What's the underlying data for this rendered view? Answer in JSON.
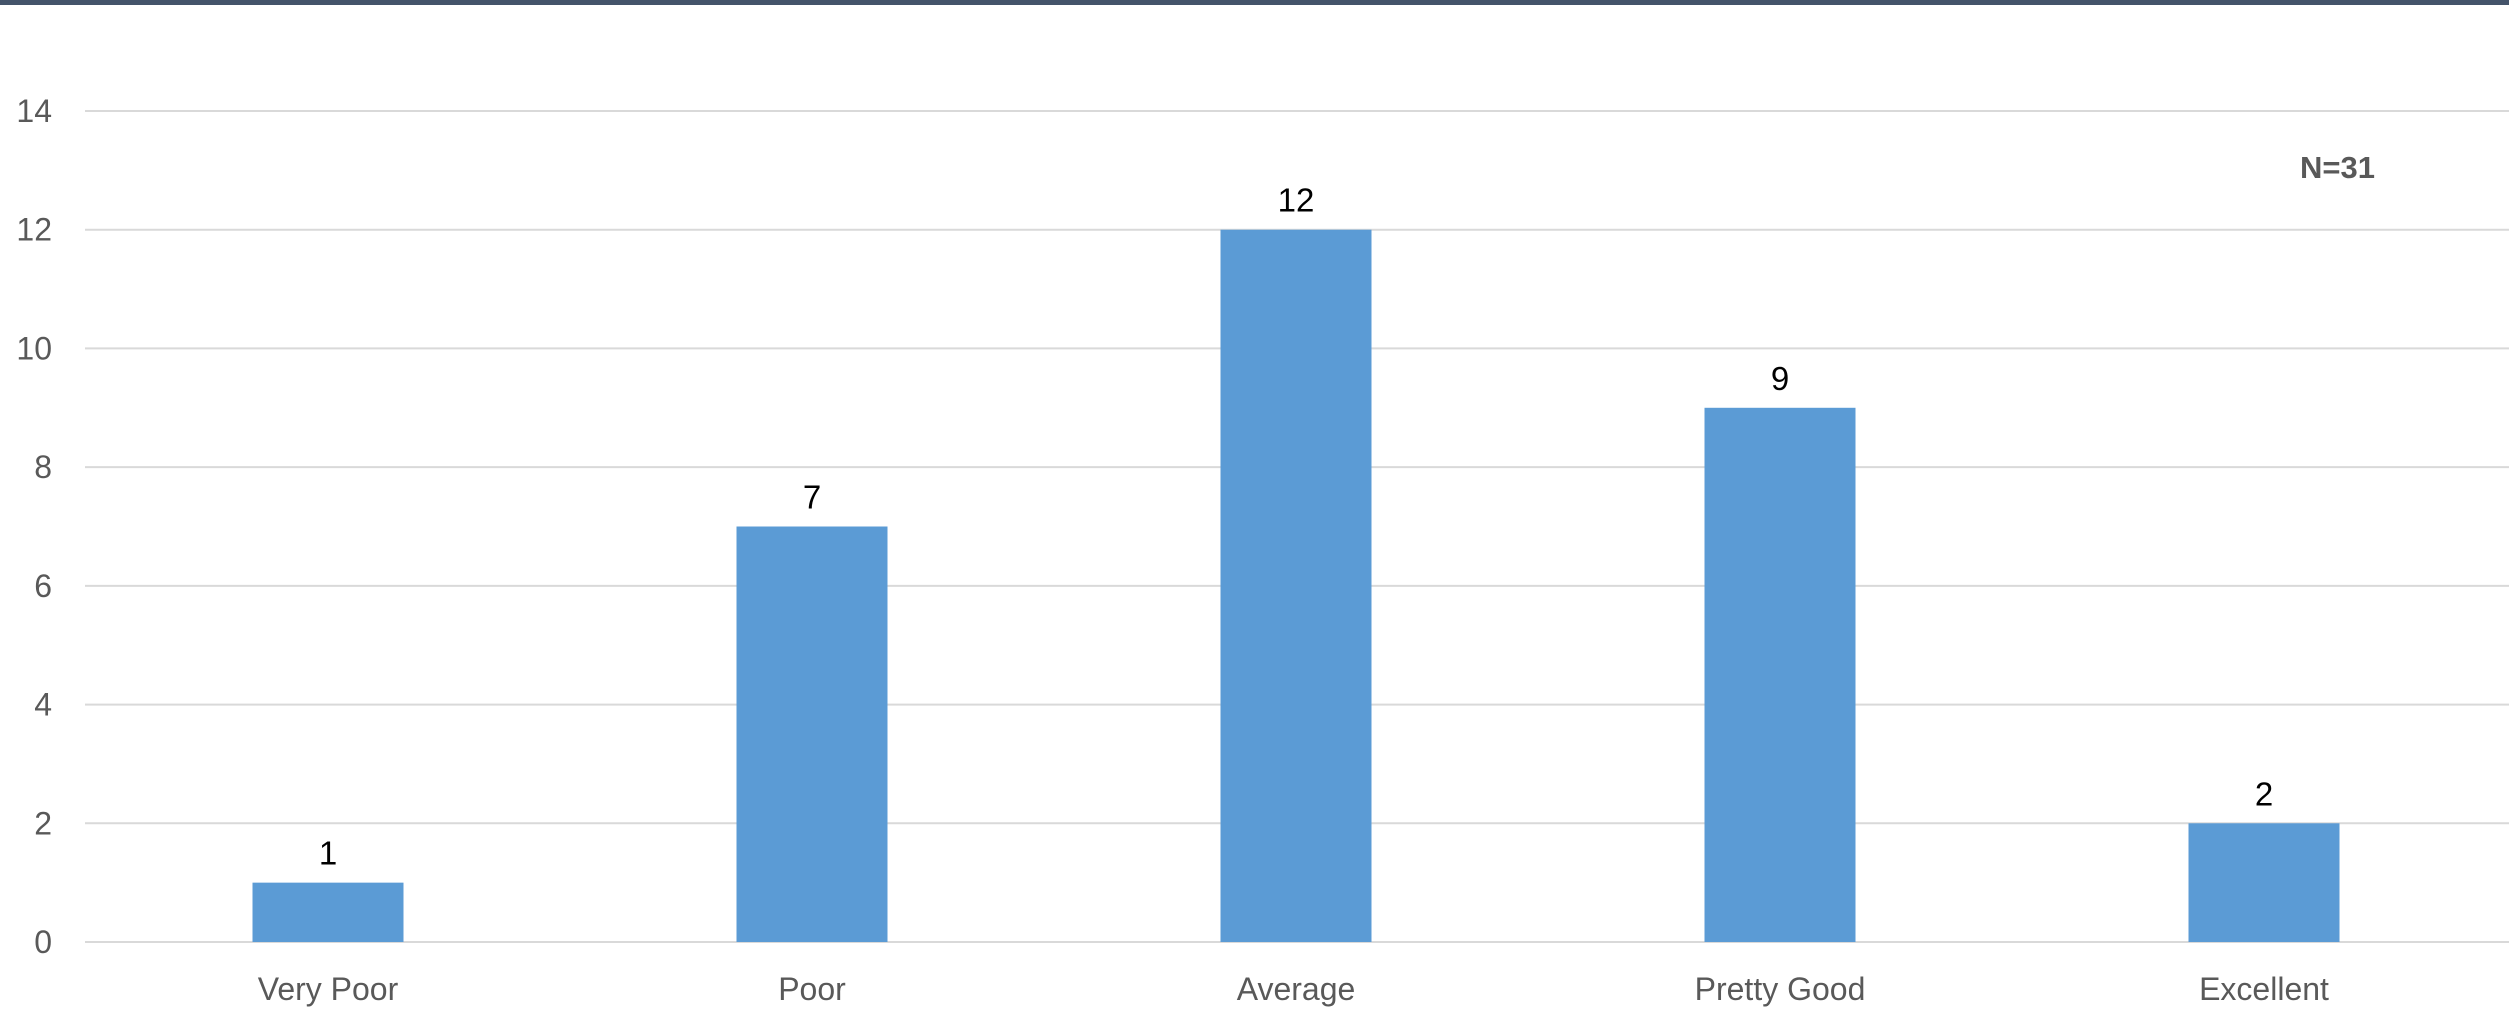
{
  "chart_data": {
    "type": "bar",
    "title": "",
    "xlabel": "",
    "ylabel": "",
    "categories": [
      "Very Poor",
      "Poor",
      "Average",
      "Pretty Good",
      "Excellent"
    ],
    "values": [
      1,
      7,
      12,
      9,
      2
    ],
    "data_labels": [
      "1",
      "7",
      "12",
      "9",
      "2"
    ],
    "ylim": [
      0,
      14
    ],
    "yticks": [
      0,
      2,
      4,
      6,
      8,
      10,
      12,
      14
    ],
    "ytick_labels": [
      "0",
      "2",
      "4",
      "6",
      "8",
      "10",
      "12",
      "14"
    ],
    "grid": true,
    "legend": "none",
    "annotation": "N=31",
    "colors": {
      "bar": "#5b9bd5",
      "grid": "#d9d9d9",
      "axis_text": "#595959",
      "top_border": "#44546a"
    }
  }
}
